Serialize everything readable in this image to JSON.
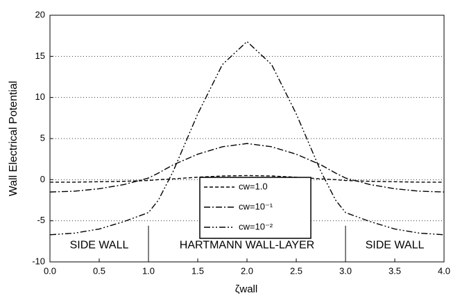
{
  "chart_data": {
    "type": "line",
    "ylabel": "Wall Electrical Potential",
    "xlabel": "ζwall",
    "x": [
      0,
      0.25,
      0.5,
      0.75,
      1,
      1.1,
      1.25,
      1.5,
      1.75,
      2,
      2.25,
      2.5,
      2.75,
      2.9,
      3,
      3.25,
      3.5,
      3.75,
      4
    ],
    "series": [
      {
        "name": "cw=1.0",
        "color": "#000000",
        "dash": "5,3",
        "values": [
          -0.3,
          -0.3,
          -0.25,
          -0.2,
          -0.1,
          0,
          0.1,
          0.3,
          0.45,
          0.5,
          0.45,
          0.3,
          0.1,
          0,
          -0.1,
          -0.2,
          -0.25,
          -0.3,
          -0.3
        ]
      },
      {
        "name": "cw=10⁻¹",
        "color": "#000000",
        "dash": "9,3,2,3",
        "values": [
          -1.5,
          -1.4,
          -1.1,
          -0.6,
          0.2,
          0.8,
          1.8,
          3.1,
          4.0,
          4.4,
          4.0,
          3.1,
          1.8,
          0.8,
          0.2,
          -0.6,
          -1.1,
          -1.4,
          -1.5
        ]
      },
      {
        "name": "cw=10⁻²",
        "color": "#000000",
        "dash": "9,3,2,3,2,3",
        "values": [
          -6.7,
          -6.5,
          -6.0,
          -5.1,
          -4.0,
          -2.5,
          1.0,
          8.0,
          14.0,
          16.8,
          14.0,
          8.0,
          1.0,
          -2.5,
          -4.0,
          -5.1,
          -6.0,
          -6.5,
          -6.7
        ]
      }
    ],
    "xlim": [
      0,
      4
    ],
    "xticks": [
      {
        "value": 0,
        "label": "0.0"
      },
      0.5,
      {
        "value": 1,
        "label": "1.0"
      },
      1.5,
      {
        "value": 2,
        "label": "2.0"
      },
      2.5,
      {
        "value": 3,
        "label": "3.0"
      },
      3.5,
      {
        "value": 4,
        "label": "4.0"
      }
    ],
    "ylim": [
      -10,
      20
    ],
    "yticks": [
      -10,
      -5,
      0,
      5,
      10,
      15,
      20
    ],
    "grid": true,
    "legend": "center",
    "separators": [
      1,
      3
    ],
    "regions": [
      "SIDE WALL",
      "HARTMANN WALL-LAYER",
      "SIDE WALL"
    ]
  }
}
